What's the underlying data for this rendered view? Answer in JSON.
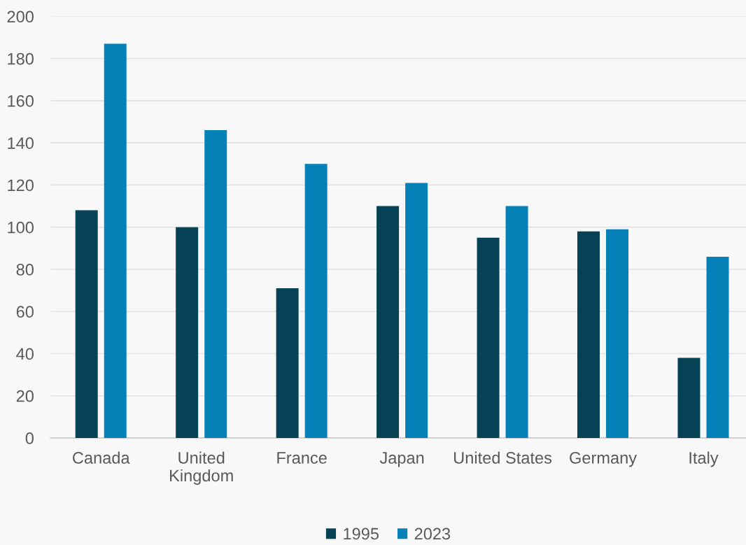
{
  "chart_data": {
    "type": "bar",
    "categories": [
      "Canada",
      "United\nKingdom",
      "France",
      "Japan",
      "United States",
      "Germany",
      "Italy"
    ],
    "series": [
      {
        "name": "1995",
        "color": "#064256",
        "values": [
          108,
          100,
          71,
          110,
          95,
          98,
          38
        ]
      },
      {
        "name": "2023",
        "color": "#0681b8",
        "values": [
          187,
          146,
          130,
          121,
          110,
          99,
          86
        ]
      }
    ],
    "ylim": [
      0,
      200
    ],
    "yticks": [
      0,
      20,
      40,
      60,
      80,
      100,
      120,
      140,
      160,
      180,
      200
    ],
    "grid": "y",
    "legend": "bottom"
  }
}
